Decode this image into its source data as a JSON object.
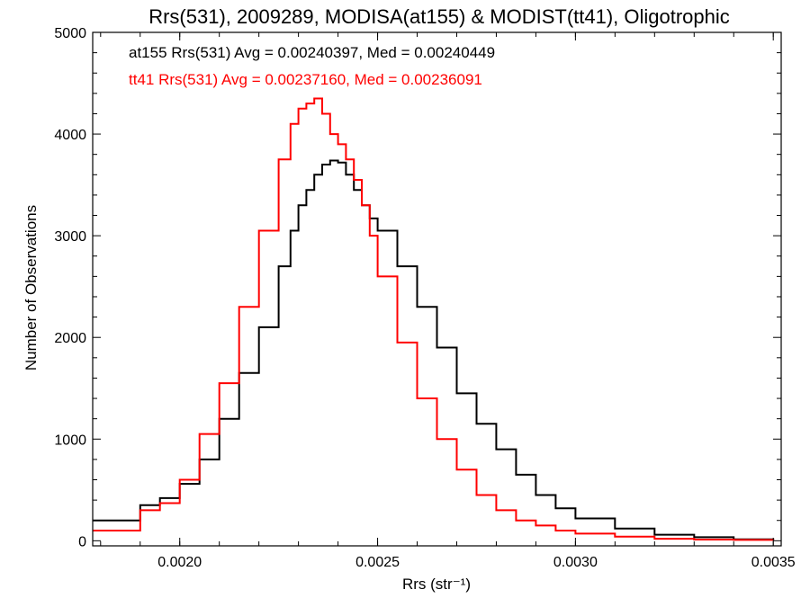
{
  "chart_data": {
    "type": "line",
    "title": "Rrs(531), 2009289, MODISA(at155) & MODIST(tt41), Oligotrophic",
    "xlabel": "Rrs (str⁻¹)",
    "ylabel": "Number of Observations",
    "xlim": [
      0.00178,
      0.00352
    ],
    "ylim": [
      -50,
      5000
    ],
    "xticks": [
      0.002,
      0.0025,
      0.003,
      0.0035
    ],
    "xtick_labels": [
      "0.0020",
      "0.0025",
      "0.0030",
      "0.0035"
    ],
    "yticks": [
      0,
      1000,
      2000,
      3000,
      4000,
      5000
    ],
    "ytick_labels": [
      "0",
      "1000",
      "2000",
      "3000",
      "4000",
      "5000"
    ],
    "grid": false,
    "annotations": [
      {
        "text": "at155 Rrs(531) Avg = 0.00240397, Med = 0.00240449",
        "color": "#000000"
      },
      {
        "text": "tt41 Rrs(531) Avg = 0.00237160, Med = 0.00236091",
        "color": "#ff0000"
      }
    ],
    "x": [
      0.00178,
      0.0019,
      0.00195,
      0.002,
      0.00205,
      0.0021,
      0.00215,
      0.0022,
      0.00225,
      0.00228,
      0.0023,
      0.00232,
      0.00234,
      0.00236,
      0.00238,
      0.0024,
      0.00242,
      0.00244,
      0.00246,
      0.00248,
      0.0025,
      0.00255,
      0.0026,
      0.00265,
      0.0027,
      0.00275,
      0.0028,
      0.00285,
      0.0029,
      0.00295,
      0.003,
      0.0031,
      0.0032,
      0.0033,
      0.0034,
      0.0035
    ],
    "series": [
      {
        "color": "#000000",
        "values": [
          200,
          350,
          420,
          560,
          800,
          1200,
          1650,
          2100,
          2700,
          3050,
          3300,
          3450,
          3600,
          3700,
          3740,
          3720,
          3600,
          3450,
          3300,
          3170,
          3050,
          2700,
          2300,
          1900,
          1450,
          1150,
          900,
          650,
          450,
          320,
          220,
          120,
          60,
          35,
          15,
          10
        ]
      },
      {
        "color": "#ff0000",
        "values": [
          100,
          300,
          370,
          600,
          1050,
          1550,
          2300,
          3050,
          3750,
          4100,
          4250,
          4300,
          4350,
          4200,
          4000,
          3900,
          3750,
          3550,
          3300,
          3000,
          2600,
          1950,
          1400,
          1000,
          700,
          450,
          300,
          200,
          150,
          100,
          70,
          40,
          20,
          12,
          8,
          5
        ]
      }
    ]
  }
}
